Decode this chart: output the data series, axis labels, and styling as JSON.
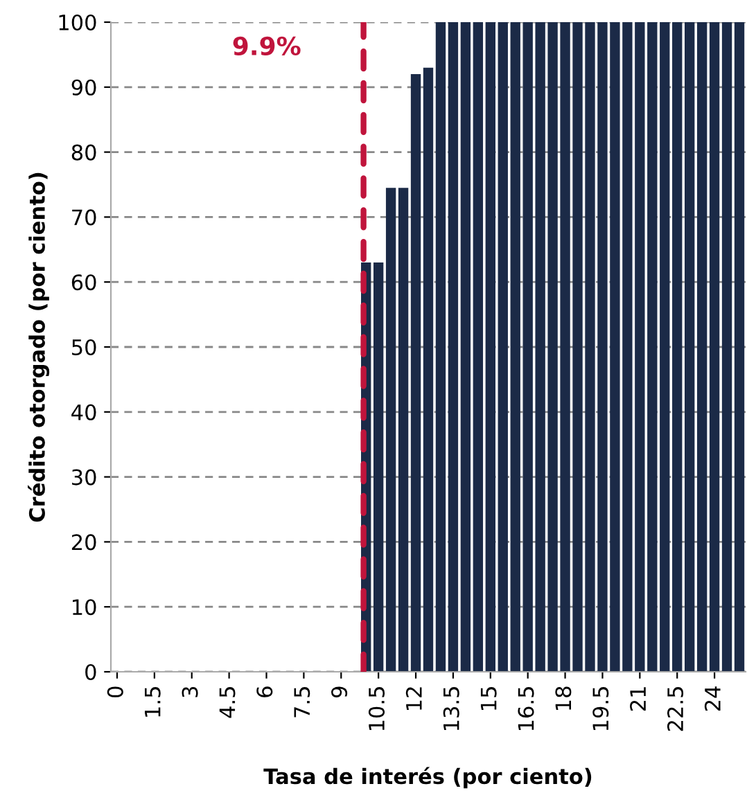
{
  "chart_data": {
    "type": "bar",
    "xlabel": "Tasa de interés (por ciento)",
    "ylabel": "Crédito otorgado (por ciento)",
    "x": [
      0,
      0.5,
      1,
      1.5,
      2,
      2.5,
      3,
      3.5,
      4,
      4.5,
      5,
      5.5,
      6,
      6.5,
      7,
      7.5,
      8,
      8.5,
      9,
      9.5,
      10,
      10.5,
      11,
      11.5,
      12,
      12.5,
      13,
      13.5,
      14,
      14.5,
      15,
      15.5,
      16,
      16.5,
      17,
      17.5,
      18,
      18.5,
      19,
      19.5,
      20,
      20.5,
      21,
      21.5,
      22,
      22.5,
      23,
      23.5,
      24,
      24.5,
      25
    ],
    "values": [
      0,
      0,
      0,
      0,
      0,
      0,
      0,
      0,
      0,
      0,
      0,
      0,
      0,
      0,
      0,
      0,
      0,
      0,
      0,
      0,
      63,
      63,
      74.5,
      74.5,
      92,
      93,
      100,
      100,
      100,
      100,
      100,
      100,
      100,
      100,
      100,
      100,
      100,
      100,
      100,
      100,
      100,
      100,
      100,
      100,
      100,
      100,
      100,
      100,
      100,
      100,
      100
    ],
    "color": "#1b2a47",
    "xlim": [
      -0.25,
      25.25
    ],
    "xticks": [
      0,
      1.5,
      3,
      4.5,
      6,
      7.5,
      9,
      10.5,
      12,
      13.5,
      15,
      16.5,
      18,
      19.5,
      21,
      22.5,
      24
    ],
    "ylim": [
      0,
      100
    ],
    "yticks": [
      0,
      10,
      20,
      30,
      40,
      50,
      60,
      70,
      80,
      90,
      100
    ],
    "grid": "y",
    "ref_lines": [
      {
        "axis": "x",
        "value": 9.9,
        "label": "9.9%",
        "color": "#c0143c",
        "line_style": "dashed"
      }
    ]
  }
}
